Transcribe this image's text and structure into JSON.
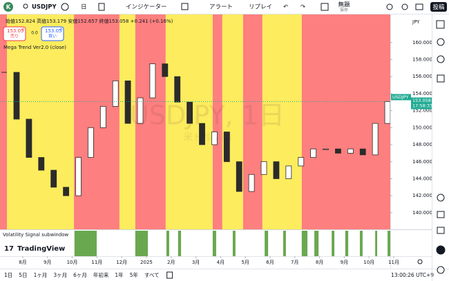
{
  "toolbar": {
    "avatar": "K",
    "symbol": "USDJPY",
    "interval": "日",
    "indicators": "インジケーター",
    "alert": "アラート",
    "replay": "リプレイ",
    "layout_name": "無題",
    "save": "保存",
    "publish": "投稿"
  },
  "legend": {
    "ohlc": "始値152.824 高値153.179 安値152.657 終値153.058 +0.241 (+0.16%)",
    "sell_price": "153.05",
    "sell_price_sup": "8",
    "sell": "売り",
    "spread": "0.0",
    "buy_price": "153.05",
    "buy_price_sup": "8",
    "buy": "買い",
    "indicator": "Mega Trend Ver2.0 (close)"
  },
  "watermark": "USDJPY, 1日",
  "watermark_sub": "米ドル / 円",
  "price_axis": {
    "currency": "JPY",
    "last_symbol": "USDJPY",
    "last_price": "153.058",
    "countdown": "17:58:33"
  },
  "chart_data": {
    "type": "candlestick",
    "up_color": "#ffffff",
    "down_color": "#2b2b2b",
    "x": [
      -0.75,
      -0.25,
      0.25,
      0.75,
      1.25,
      1.75,
      2.25,
      2.75,
      3.25,
      3.75,
      4.25,
      4.75,
      5.25,
      5.75,
      6.25,
      6.75,
      7.25,
      7.75,
      8.25,
      8.75,
      9.25,
      9.75,
      10.25,
      10.75,
      11.25,
      11.75,
      12.25,
      12.75,
      13.25,
      13.75,
      14.25,
      14.75
    ],
    "values": [
      156.5,
      151,
      146.5,
      145,
      143,
      142,
      146.5,
      150,
      152.5,
      155.5,
      150.5,
      153.5,
      157.5,
      156,
      153,
      150.5,
      148,
      149.5,
      146,
      142.5,
      144.5,
      146,
      144,
      145.5,
      146.5,
      147.5,
      147.5,
      147,
      147.5,
      146.8,
      150.5,
      153.06
    ],
    "xlim": [
      -0.92,
      14.86
    ],
    "ylim": [
      138.05,
      163.3
    ],
    "xticks": [
      {
        "value": 0,
        "label": "8月"
      },
      {
        "value": 1,
        "label": "9月"
      },
      {
        "value": 2,
        "label": "10月"
      },
      {
        "value": 3,
        "label": "11月"
      },
      {
        "value": 4,
        "label": "12月"
      },
      {
        "value": 5,
        "label": "2025"
      },
      {
        "value": 6,
        "label": "2月"
      },
      {
        "value": 7,
        "label": "3月"
      },
      {
        "value": 8,
        "label": "4月"
      },
      {
        "value": 9,
        "label": "5月"
      },
      {
        "value": 10,
        "label": "6月"
      },
      {
        "value": 11,
        "label": "7月"
      },
      {
        "value": 12,
        "label": "8月"
      },
      {
        "value": 13,
        "label": "9月"
      },
      {
        "value": 14,
        "label": "10月"
      },
      {
        "value": 15,
        "label": "11月"
      }
    ],
    "yticks": [
      {
        "value": 140,
        "label": "140.000"
      },
      {
        "value": 142,
        "label": "142.000"
      },
      {
        "value": 144,
        "label": "144.000"
      },
      {
        "value": 146,
        "label": "146.000"
      },
      {
        "value": 148,
        "label": "148.000"
      },
      {
        "value": 150,
        "label": "150.000"
      },
      {
        "value": 152,
        "label": "152.000"
      },
      {
        "value": 154,
        "label": "154.000"
      },
      {
        "value": 156,
        "label": "156.000"
      },
      {
        "value": 158,
        "label": "158.000"
      },
      {
        "value": 160,
        "label": "160.000"
      }
    ],
    "bands": [
      {
        "start": -0.92,
        "end": -0.64,
        "color": "#fd7f7f"
      },
      {
        "start": -0.64,
        "end": 2.07,
        "color": "#fcec5e"
      },
      {
        "start": 2.07,
        "end": 3.91,
        "color": "#fd7f7f"
      },
      {
        "start": 3.91,
        "end": 4.55,
        "color": "#fcec5e"
      },
      {
        "start": 4.55,
        "end": 5.78,
        "color": "#fd7f7f"
      },
      {
        "start": 5.78,
        "end": 7.68,
        "color": "#fcec5e"
      },
      {
        "start": 7.68,
        "end": 8.07,
        "color": "#fd7f7f"
      },
      {
        "start": 8.07,
        "end": 8.91,
        "color": "#fcec5e"
      },
      {
        "start": 8.91,
        "end": 9.69,
        "color": "#fd7f7f"
      },
      {
        "start": 9.69,
        "end": 11.28,
        "color": "#fcec5e"
      },
      {
        "start": 11.28,
        "end": 14.86,
        "color": "#fd7f7f"
      }
    ]
  },
  "subwindow": {
    "title": "Volatility Signal subwindow",
    "color": "#6aa84f",
    "signals": [
      {
        "start": 2.09,
        "end": 2.99
      },
      {
        "start": 4.55,
        "end": 5.06
      },
      {
        "start": 5.81,
        "end": 5.92
      },
      {
        "start": 6.28,
        "end": 6.4
      },
      {
        "start": 7.68,
        "end": 7.82
      },
      {
        "start": 8.49,
        "end": 8.6
      },
      {
        "start": 9.78,
        "end": 9.92
      },
      {
        "start": 10.53,
        "end": 10.64
      },
      {
        "start": 11.28,
        "end": 11.51
      },
      {
        "start": 11.79,
        "end": 11.96
      },
      {
        "start": 12.49,
        "end": 12.6
      },
      {
        "start": 13.04,
        "end": 13.16
      },
      {
        "start": 13.63,
        "end": 13.74
      },
      {
        "start": 14.25,
        "end": 14.33
      },
      {
        "start": 14.75,
        "end": 14.86
      }
    ]
  },
  "logo": "TradingView",
  "bottom_bar": {
    "ranges": [
      "1日",
      "5日",
      "1ヶ月",
      "3ヶ月",
      "6ヶ月",
      "年初来",
      "1年",
      "5年",
      "すべて"
    ],
    "clock": "13:00:26 UTC+9"
  }
}
